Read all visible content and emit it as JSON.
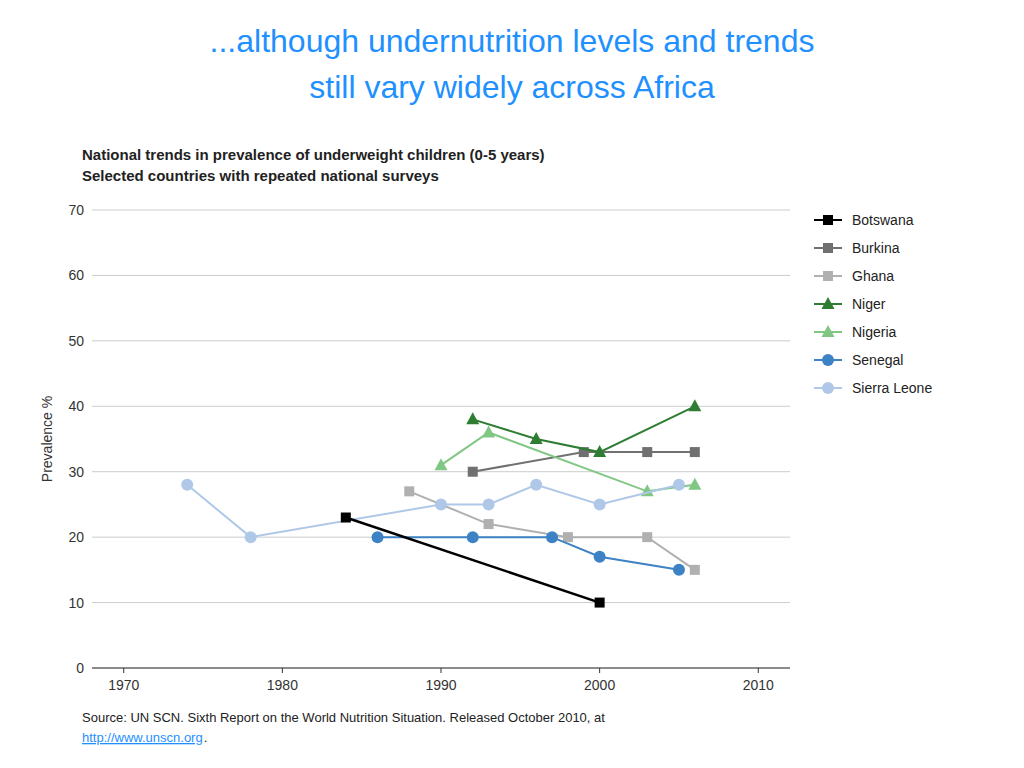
{
  "chart_data": {
    "type": "line",
    "title": [
      "...although undernutrition levels and trends",
      "still vary widely across Africa"
    ],
    "title_color": "#1E90FF",
    "subtitle": [
      "National trends in prevalence of underweight children (0-5 years)",
      "Selected countries with repeated national surveys"
    ],
    "y_label": "Prevalence %",
    "xlim": [
      1968,
      2012
    ],
    "xticks": [
      1970,
      1980,
      1990,
      2000,
      2010
    ],
    "ylim": [
      0,
      70
    ],
    "yticks": [
      0,
      10,
      20,
      30,
      40,
      50,
      60,
      70
    ],
    "grid": true,
    "legend": "right",
    "annotations": [
      "Source: UN SCN. Sixth Report on the World Nutrition Situation. Released October 2010, at",
      "http://www.unscn.org",
      "."
    ],
    "series": [
      {
        "name": "Botswana",
        "color": "#000000",
        "marker": "square",
        "line_style": "solid",
        "x": [
          1984,
          2000
        ],
        "values": [
          23,
          10
        ]
      },
      {
        "name": "Burkina",
        "color": "#707070",
        "marker": "square",
        "line_style": "solid",
        "x": [
          1992,
          1999,
          2003,
          2006
        ],
        "values": [
          30,
          33,
          33,
          33
        ]
      },
      {
        "name": "Ghana",
        "color": "#B0B0B0",
        "marker": "square",
        "line_style": "solid",
        "x": [
          1988,
          1993,
          1998,
          2003,
          2006
        ],
        "values": [
          27,
          22,
          20,
          20,
          15
        ]
      },
      {
        "name": "Niger",
        "color": "#2E7D32",
        "marker": "triangle",
        "line_style": "solid",
        "x": [
          1992,
          1996,
          2000,
          2006
        ],
        "values": [
          38,
          35,
          33,
          40
        ]
      },
      {
        "name": "Nigeria",
        "color": "#81C784",
        "marker": "triangle",
        "line_style": "solid",
        "x": [
          1990,
          1993,
          2003,
          2006
        ],
        "values": [
          31,
          36,
          27,
          28
        ]
      },
      {
        "name": "Senegal",
        "color": "#3D82C4",
        "marker": "circle",
        "line_style": "solid",
        "x": [
          1986,
          1992,
          1997,
          2000,
          2005
        ],
        "values": [
          20,
          20,
          20,
          17,
          15
        ]
      },
      {
        "name": "Sierra Leone",
        "color": "#B0C8E8",
        "marker": "circle",
        "line_style": "solid",
        "x": [
          1974,
          1978,
          1990,
          1993,
          1996,
          2000,
          2005
        ],
        "values": [
          28,
          20,
          25,
          25,
          28,
          25,
          28
        ]
      }
    ]
  }
}
